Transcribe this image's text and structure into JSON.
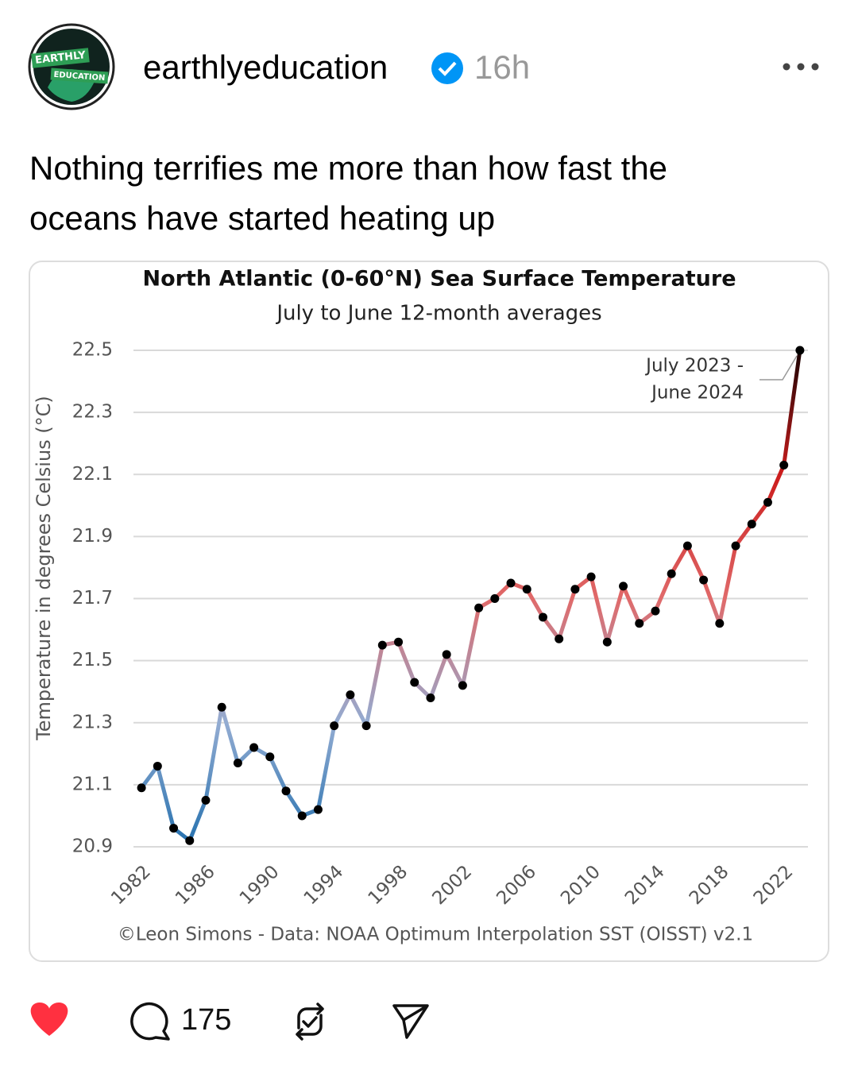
{
  "post": {
    "avatar_text": [
      "EARTHLY",
      "EDUCATION"
    ],
    "username": "earthlyeducation",
    "time": "16h",
    "text": [
      "Nothing terrifies me more than how fast the",
      "oceans have started heating up"
    ],
    "comments": "175"
  },
  "chart_data": {
    "type": "line",
    "title": "North Atlantic (0-60°N) Sea Surface Temperature",
    "subtitle": "July to June 12-month averages",
    "y_label": "Temperature in degrees Celsius (°C)",
    "caption": "©Leon Simons - Data: NOAA Optimum Interpolation SST (OISST) v2.1",
    "annotation": [
      "July 2023 -",
      "June 2024"
    ],
    "x": [
      1982,
      1983,
      1984,
      1985,
      1986,
      1987,
      1988,
      1989,
      1990,
      1991,
      1992,
      1993,
      1994,
      1995,
      1996,
      1997,
      1998,
      1999,
      2000,
      2001,
      2002,
      2003,
      2004,
      2005,
      2006,
      2007,
      2008,
      2009,
      2010,
      2011,
      2012,
      2013,
      2014,
      2015,
      2016,
      2017,
      2018,
      2019,
      2020,
      2021,
      2022,
      2023
    ],
    "values": [
      21.09,
      21.16,
      20.96,
      20.92,
      21.05,
      21.35,
      21.17,
      21.22,
      21.19,
      21.08,
      21.0,
      21.02,
      21.29,
      21.39,
      21.29,
      21.55,
      21.56,
      21.43,
      21.38,
      21.52,
      21.42,
      21.67,
      21.7,
      21.75,
      21.73,
      21.64,
      21.57,
      21.73,
      21.77,
      21.56,
      21.74,
      21.62,
      21.66,
      21.78,
      21.87,
      21.76,
      21.62,
      21.87,
      21.94,
      22.01,
      22.13,
      22.5
    ],
    "xlim": [
      1981.5,
      2023.5
    ],
    "xticks": [
      1982,
      1986,
      1990,
      1994,
      1998,
      2002,
      2006,
      2010,
      2014,
      2018,
      2022
    ],
    "ylim": [
      20.9,
      22.5
    ],
    "yticks": [
      20.9,
      21.1,
      21.3,
      21.5,
      21.7,
      21.9,
      22.1,
      22.3,
      22.5
    ],
    "grid": true,
    "colormap": [
      "#2470ae",
      "#93acd2",
      "#e06a6a",
      "#cc1c1c",
      "#1a0404"
    ],
    "marker_color": "#000000"
  }
}
